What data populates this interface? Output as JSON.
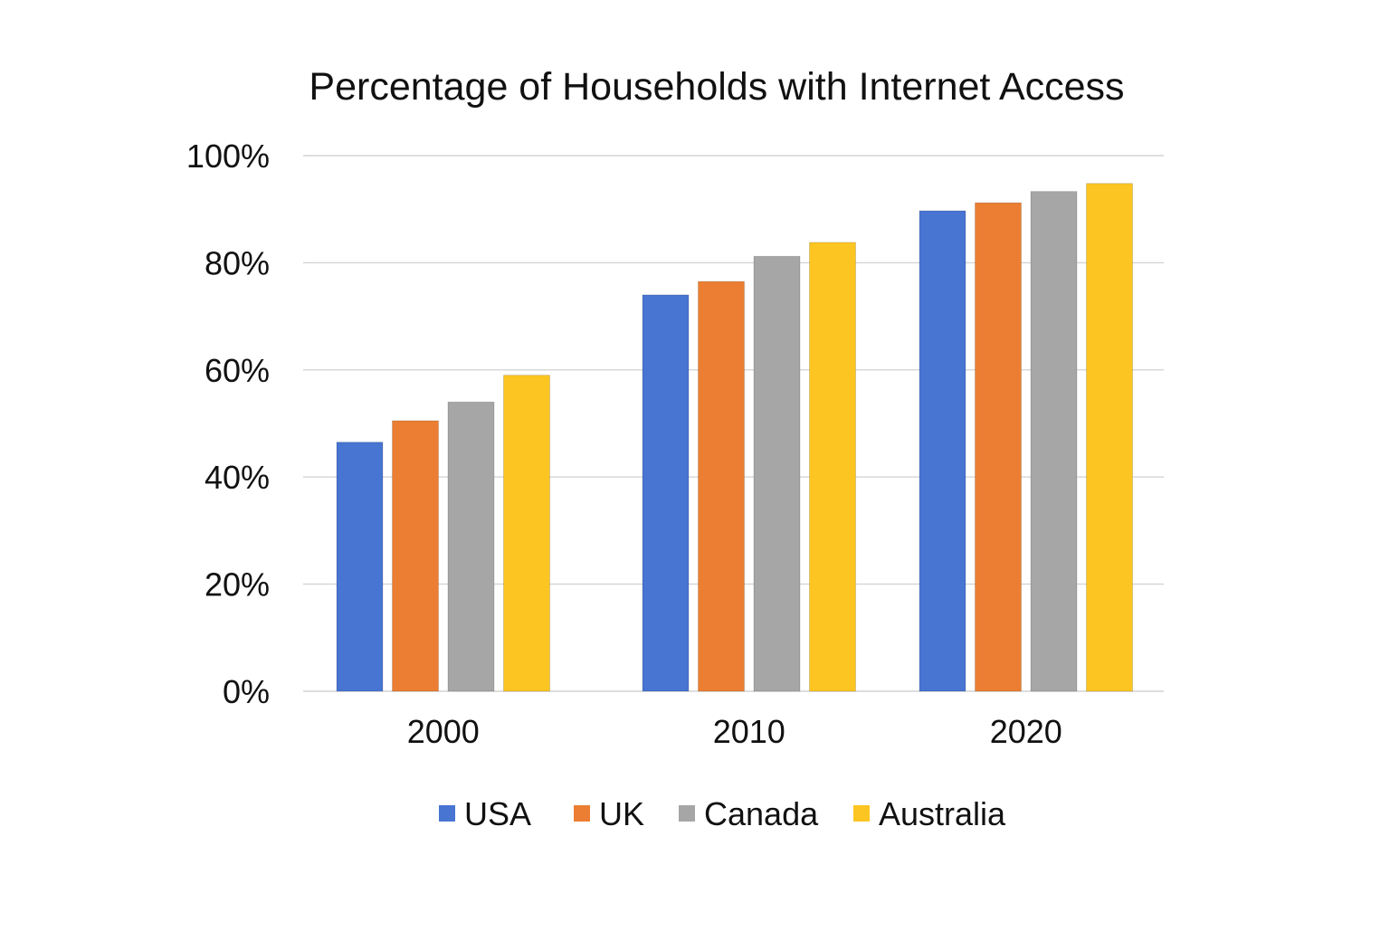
{
  "chart_data": {
    "type": "bar",
    "title": "Percentage of Households with Internet Access",
    "xlabel": "",
    "ylabel": "",
    "categories": [
      "2000",
      "2010",
      "2020"
    ],
    "ylim": [
      0,
      100
    ],
    "yticks": [
      0,
      20,
      40,
      60,
      80,
      100
    ],
    "ytick_labels": [
      "0%",
      "20%",
      "40%",
      "60%",
      "80%",
      "100%"
    ],
    "grid": true,
    "legend_position": "bottom-center",
    "series": [
      {
        "name": "USA",
        "color": "#4874D2",
        "values": [
          46.5,
          74,
          89.7
        ]
      },
      {
        "name": "UK",
        "color": "#EB7E32",
        "values": [
          50.5,
          76.5,
          91.2
        ]
      },
      {
        "name": "Canada",
        "color": "#A6A6A6",
        "values": [
          54,
          81.2,
          93.3
        ]
      },
      {
        "name": "Australia",
        "color": "#FCC521",
        "values": [
          59,
          83.8,
          94.8
        ]
      }
    ],
    "gridline_color": "#D4D4D4"
  }
}
